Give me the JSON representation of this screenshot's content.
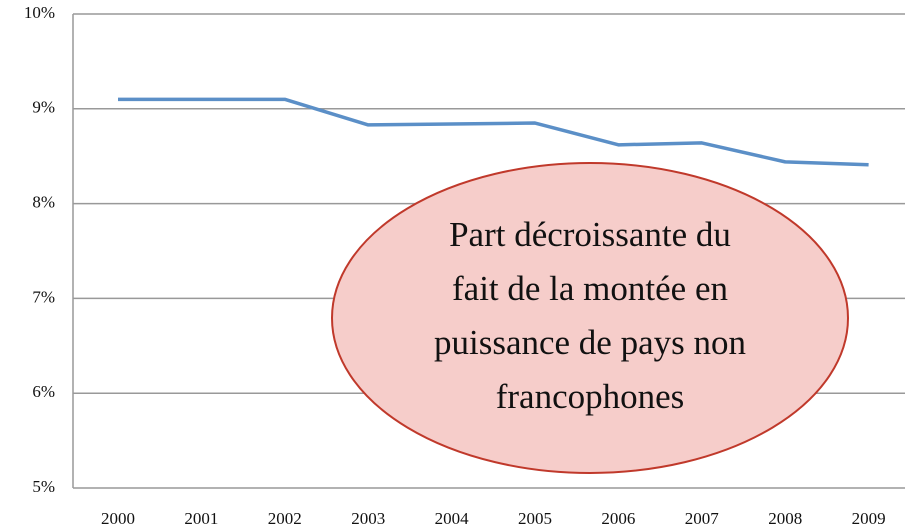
{
  "chart_data": {
    "type": "line",
    "categories": [
      "2000",
      "2001",
      "2002",
      "2003",
      "2004",
      "2005",
      "2006",
      "2007",
      "2008",
      "2009"
    ],
    "series": [
      {
        "color": "#5b8fc7",
        "values": [
          9.1,
          9.1,
          9.1,
          8.83,
          8.84,
          8.85,
          8.62,
          8.64,
          8.44,
          8.41
        ]
      }
    ],
    "ylim": [
      5,
      10
    ],
    "yticks": [
      {
        "value": 5,
        "label": "5%"
      },
      {
        "value": 6,
        "label": "6%"
      },
      {
        "value": 7,
        "label": "7%"
      },
      {
        "value": 8,
        "label": "8%"
      },
      {
        "value": 9,
        "label": "9%"
      },
      {
        "value": 10,
        "label": "10%"
      }
    ],
    "grid": true,
    "annotation": [
      "Part décroissante du",
      "fait de la montée en",
      "puissance de pays non",
      "francophones"
    ]
  }
}
